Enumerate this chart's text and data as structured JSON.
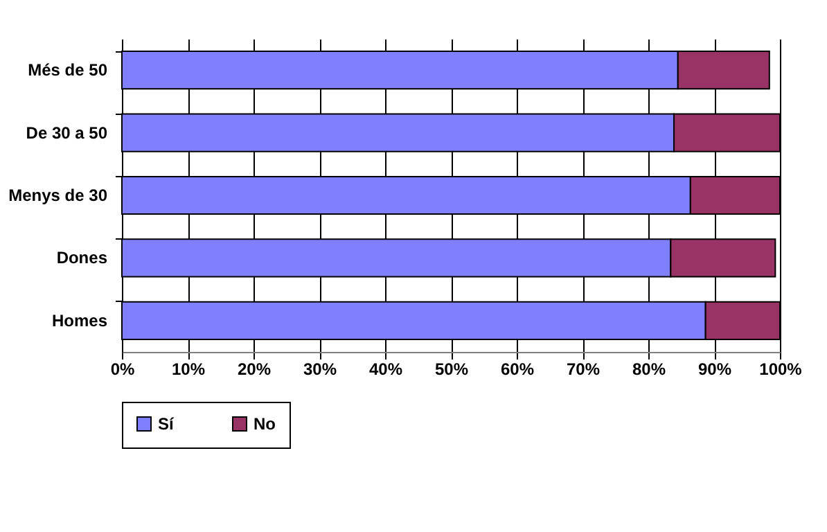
{
  "chart_data": {
    "type": "bar",
    "orientation": "horizontal",
    "stacked": true,
    "categories": [
      "Més de 50",
      "De 30 a 50",
      "Menys de 30",
      "Dones",
      "Homes"
    ],
    "series": [
      {
        "name": "Sí",
        "color": "#8080ff",
        "values": [
          84.5,
          83.9,
          86.4,
          83.4,
          88.7
        ]
      },
      {
        "name": "No",
        "color": "#993366",
        "values": [
          13.9,
          16.1,
          13.6,
          15.9,
          11.3
        ]
      }
    ],
    "xlim": [
      0,
      100
    ],
    "xticks": [
      {
        "value": 0,
        "label": "0%"
      },
      {
        "value": 10,
        "label": "10%"
      },
      {
        "value": 20,
        "label": "20%"
      },
      {
        "value": 30,
        "label": "30%"
      },
      {
        "value": 40,
        "label": "40%"
      },
      {
        "value": 50,
        "label": "50%"
      },
      {
        "value": 60,
        "label": "60%"
      },
      {
        "value": 70,
        "label": "70%"
      },
      {
        "value": 80,
        "label": "80%"
      },
      {
        "value": 90,
        "label": "90%"
      },
      {
        "value": 100,
        "label": "100%"
      }
    ],
    "grid": "x",
    "legend": "bottom left"
  }
}
